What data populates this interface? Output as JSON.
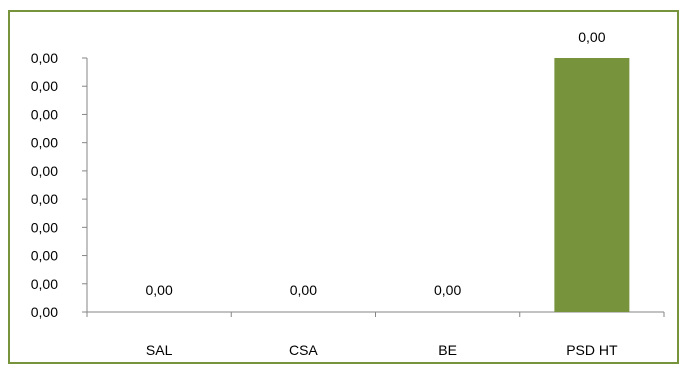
{
  "chart_data": {
    "type": "bar",
    "title": "",
    "xlabel": "",
    "ylabel": "",
    "categories": [
      "SAL",
      "CSA",
      "BE",
      "PSD HT"
    ],
    "series": [
      {
        "values": [
          0,
          0,
          0,
          0.0018
        ],
        "data_labels": [
          "0,00",
          "0,00",
          "0,00",
          "0,00"
        ],
        "color": "#77933c"
      }
    ],
    "y_ticks": [
      "0,00",
      "0,00",
      "0,00",
      "0,00",
      "0,00",
      "0,00",
      "0,00",
      "0,00",
      "0,00",
      "0,00"
    ],
    "ylim": [
      0,
      0.0018
    ],
    "grid": false,
    "legend": "none",
    "border_color": "#77933c"
  }
}
